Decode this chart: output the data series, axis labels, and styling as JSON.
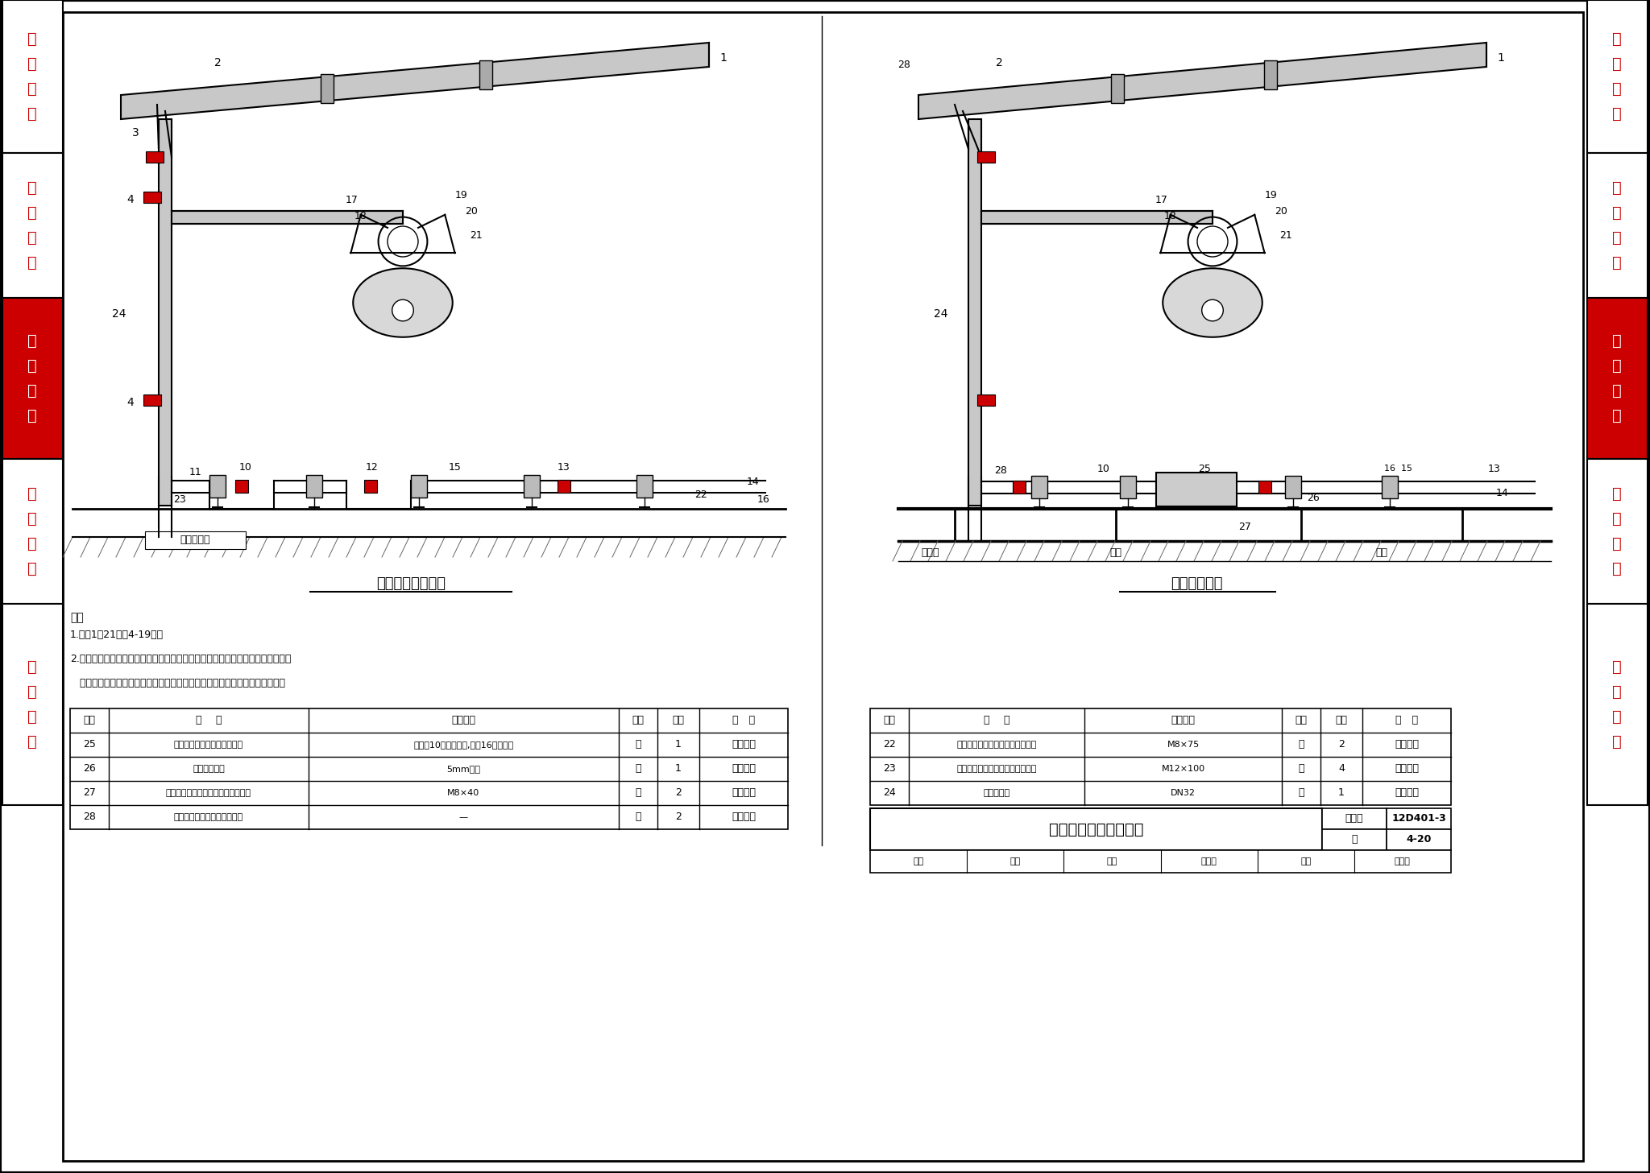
{
  "title": "防爆荧光灯法兰式安装",
  "fig_num": "12D401-3",
  "page": "4-20",
  "left_highlight": "照明灯具",
  "right_highlight": "照明灯具",
  "left_title": "混凝土平台上安装",
  "right_title": "钢平台上安装",
  "notes": [
    "注：",
    "1.编号1～21见第4-19页。",
    "2.本图灯具与接线盒的位置仅为示意，施工中应根据现场实际情况确定接线盒的安",
    "   装位置。接线盒实际安装位置应方便灯具接线，并不影响人员的通过和操作。"
  ],
  "left_table": {
    "headers": [
      "编号",
      "名    称",
      "型号规格",
      "单位",
      "数量",
      "备   注"
    ],
    "rows": [
      [
        "25",
        "防爆挠性连接管（内外螺纹）",
        "与编号10防爆接线盒,编号16钢管配合",
        "套",
        "1",
        "市售成品"
      ],
      [
        "26",
        "接线盒固定架",
        "5mm钢板",
        "个",
        "1",
        "现场制作"
      ],
      [
        "27",
        "六角头螺栓、螺母、垫圈及弹簧垫圈",
        "M8×40",
        "套",
        "2",
        "市售成品"
      ],
      [
        "28",
        "防爆挠性连接管（双外螺纹）",
        "—",
        "根",
        "2",
        "市售成品"
      ]
    ]
  },
  "right_table": {
    "headers": [
      "编号",
      "名    称",
      "型号规格",
      "单位",
      "数量",
      "备   注"
    ],
    "rows": [
      [
        "22",
        "防胀螺栓、螺母、垫圈及弹簧垫圈",
        "M8×75",
        "套",
        "2",
        "市售成品"
      ],
      [
        "23",
        "防胀螺栓、螺母、垫圈及弹簧垫圈",
        "M12×100",
        "套",
        "4",
        "市售成品"
      ],
      [
        "24",
        "法兰式灯杆",
        "DN32",
        "根",
        "1",
        "灯具配套"
      ]
    ]
  },
  "bg_color": "#ffffff",
  "border_color": "#000000",
  "sidebar_text_color_normal": "#cc0000",
  "sidebar_text_color_highlight": "#ffffff",
  "sidebar_bg_highlight": "#cc0000",
  "drawing_color": "#000000",
  "red_block_color": "#cc0000"
}
